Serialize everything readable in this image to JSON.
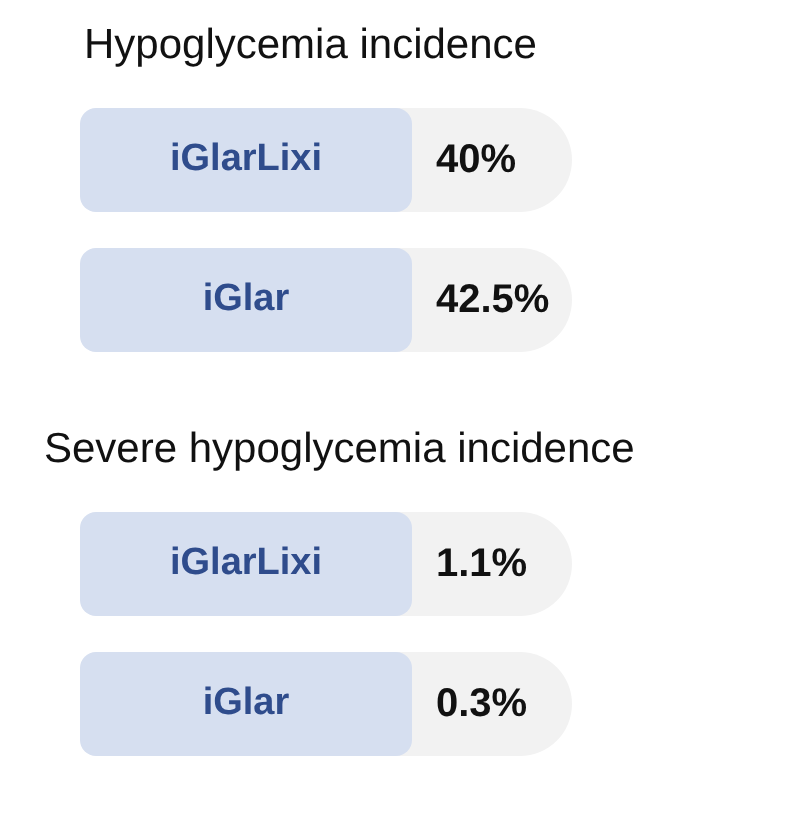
{
  "chart_data": [
    {
      "type": "other",
      "title": "Hypoglycemia incidence",
      "categories": [
        "iGlarLixi",
        "iGlar"
      ],
      "values": [
        40,
        42.5
      ],
      "value_labels": [
        "40%",
        "42.5%"
      ]
    },
    {
      "type": "other",
      "title": "Severe hypoglycemia incidence",
      "categories": [
        "iGlarLixi",
        "iGlar"
      ],
      "values": [
        1.1,
        0.3
      ],
      "value_labels": [
        "1.1%",
        "0.3%"
      ]
    }
  ]
}
